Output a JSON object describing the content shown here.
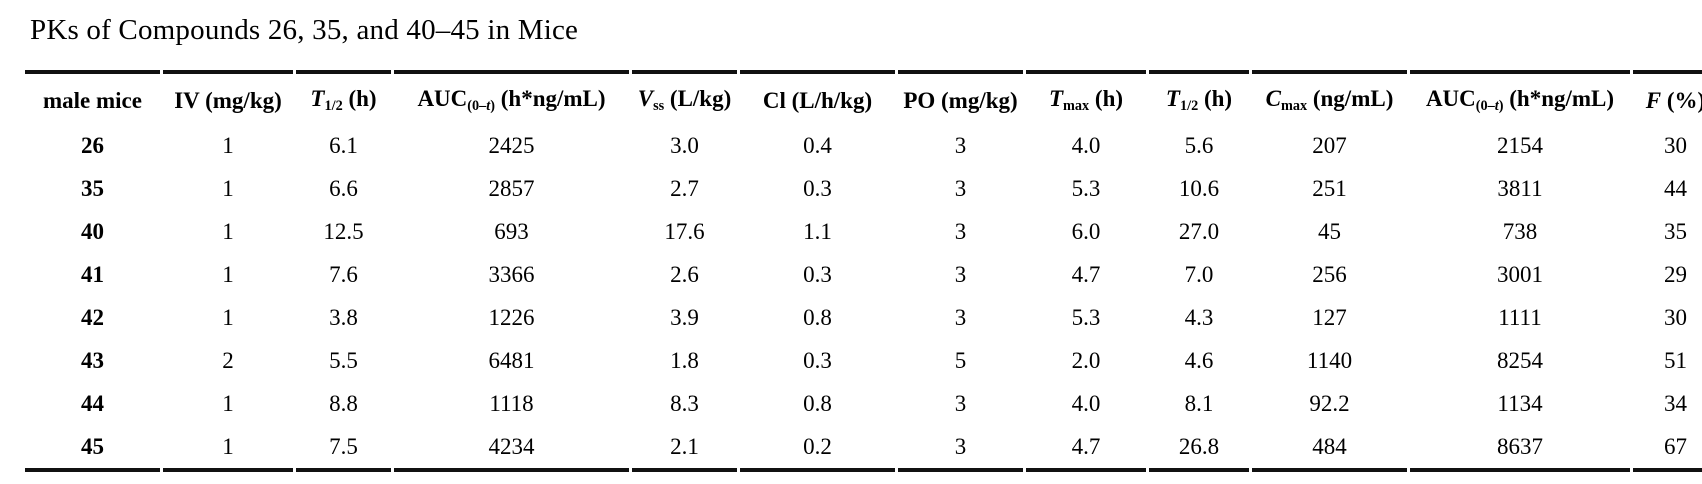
{
  "title": "PKs of Compounds 26, 35, and 40–45 in Mice",
  "table": {
    "headers": [
      [
        {
          "t": "male mice"
        }
      ],
      [
        {
          "t": "IV (mg/kg)"
        }
      ],
      [
        {
          "t": "T",
          "i": true
        },
        {
          "t": "1/2",
          "sub": true
        },
        {
          "t": " (h)"
        }
      ],
      [
        {
          "t": "AUC"
        },
        {
          "t": "(0–",
          "sub": true
        },
        {
          "t": "t",
          "sub": true,
          "i": true
        },
        {
          "t": ")",
          "sub": true
        },
        {
          "t": " (h*ng/mL)"
        }
      ],
      [
        {
          "t": "V",
          "i": true
        },
        {
          "t": "ss",
          "sub": true
        },
        {
          "t": " (L/kg)"
        }
      ],
      [
        {
          "t": "Cl (L/h/kg)"
        }
      ],
      [
        {
          "t": "PO (mg/kg)"
        }
      ],
      [
        {
          "t": "T",
          "i": true
        },
        {
          "t": "max",
          "sub": true
        },
        {
          "t": " (h)"
        }
      ],
      [
        {
          "t": "T",
          "i": true
        },
        {
          "t": "1/2",
          "sub": true
        },
        {
          "t": " (h)"
        }
      ],
      [
        {
          "t": "C",
          "i": true
        },
        {
          "t": "max",
          "sub": true
        },
        {
          "t": " (ng/mL)"
        }
      ],
      [
        {
          "t": "AUC"
        },
        {
          "t": "(0–",
          "sub": true
        },
        {
          "t": "t",
          "sub": true,
          "i": true
        },
        {
          "t": ")",
          "sub": true
        },
        {
          "t": " (h*ng/mL)"
        }
      ],
      [
        {
          "t": "F",
          "i": true
        },
        {
          "t": " (%)"
        }
      ]
    ],
    "rows": [
      [
        "26",
        "1",
        "6.1",
        "2425",
        "3.0",
        "0.4",
        "3",
        "4.0",
        "5.6",
        "207",
        "2154",
        "30"
      ],
      [
        "35",
        "1",
        "6.6",
        "2857",
        "2.7",
        "0.3",
        "3",
        "5.3",
        "10.6",
        "251",
        "3811",
        "44"
      ],
      [
        "40",
        "1",
        "12.5",
        "693",
        "17.6",
        "1.1",
        "3",
        "6.0",
        "27.0",
        "45",
        "738",
        "35"
      ],
      [
        "41",
        "1",
        "7.6",
        "3366",
        "2.6",
        "0.3",
        "3",
        "4.7",
        "7.0",
        "256",
        "3001",
        "29"
      ],
      [
        "42",
        "1",
        "3.8",
        "1226",
        "3.9",
        "0.8",
        "3",
        "5.3",
        "4.3",
        "127",
        "1111",
        "30"
      ],
      [
        "43",
        "2",
        "5.5",
        "6481",
        "1.8",
        "0.3",
        "5",
        "2.0",
        "4.6",
        "1140",
        "8254",
        "51"
      ],
      [
        "44",
        "1",
        "8.8",
        "1118",
        "8.3",
        "0.8",
        "3",
        "4.0",
        "8.1",
        "92.2",
        "1134",
        "34"
      ],
      [
        "45",
        "1",
        "7.5",
        "4234",
        "2.1",
        "0.2",
        "3",
        "4.7",
        "26.8",
        "484",
        "8637",
        "67"
      ]
    ]
  },
  "colors": {
    "text": "#000000",
    "rule": "#111111",
    "background": "#ffffff"
  }
}
